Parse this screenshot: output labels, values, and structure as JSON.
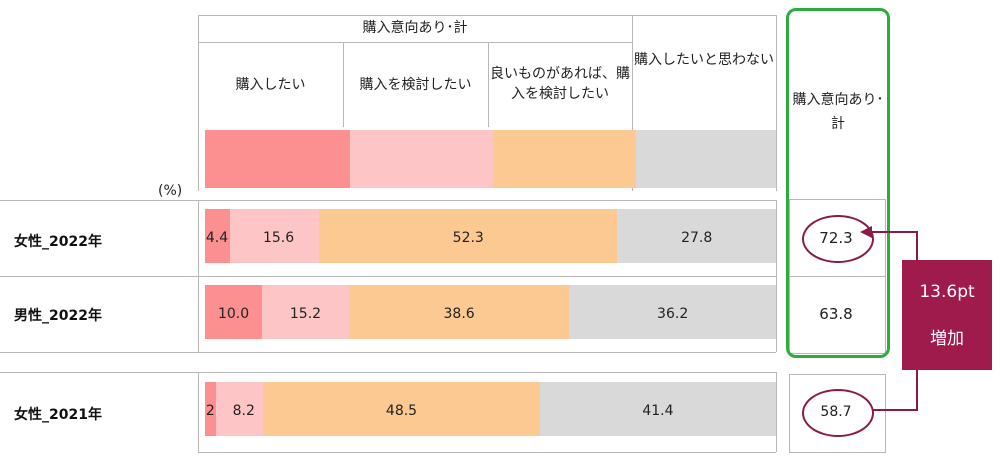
{
  "chart_data": {
    "type": "bar",
    "stacked": true,
    "percent_unit": "(%)",
    "header_group": "購入意向あり･計",
    "series": [
      {
        "name": "購入したい",
        "color": "#fc8f90"
      },
      {
        "name": "購入を検討したい",
        "color": "#fec5c6"
      },
      {
        "name": "良いものがあれば、購入を検討したい",
        "color": "#fdc992"
      },
      {
        "name": "購入したいと思わない",
        "color": "#d9d9d9"
      }
    ],
    "total_header": "購入意向あり･計",
    "rows": [
      {
        "label": "女性_2022年",
        "values": [
          4.4,
          15.6,
          52.3,
          27.8
        ],
        "labels": [
          "4.4",
          "15.6",
          "52.3",
          "27.8"
        ],
        "total": "72.3",
        "total_circled": true
      },
      {
        "label": "男性_2022年",
        "values": [
          10.0,
          15.2,
          38.6,
          36.2
        ],
        "labels": [
          "10.0",
          "15.2",
          "38.6",
          "36.2"
        ],
        "total": "63.8",
        "total_circled": false
      },
      {
        "label": "女性_2021年",
        "values": [
          2.0,
          8.2,
          48.5,
          41.4
        ],
        "labels": [
          "2.0",
          "8.2",
          "48.5",
          "41.4"
        ],
        "total": "58.7",
        "total_circled": true
      }
    ],
    "annotation": {
      "line1": "13.6pt",
      "line2": "増加"
    },
    "colors": {
      "highlight_border": "#2eaa3f",
      "circle": "#8b1a47",
      "callout_bg": "#9e1b4c"
    }
  }
}
